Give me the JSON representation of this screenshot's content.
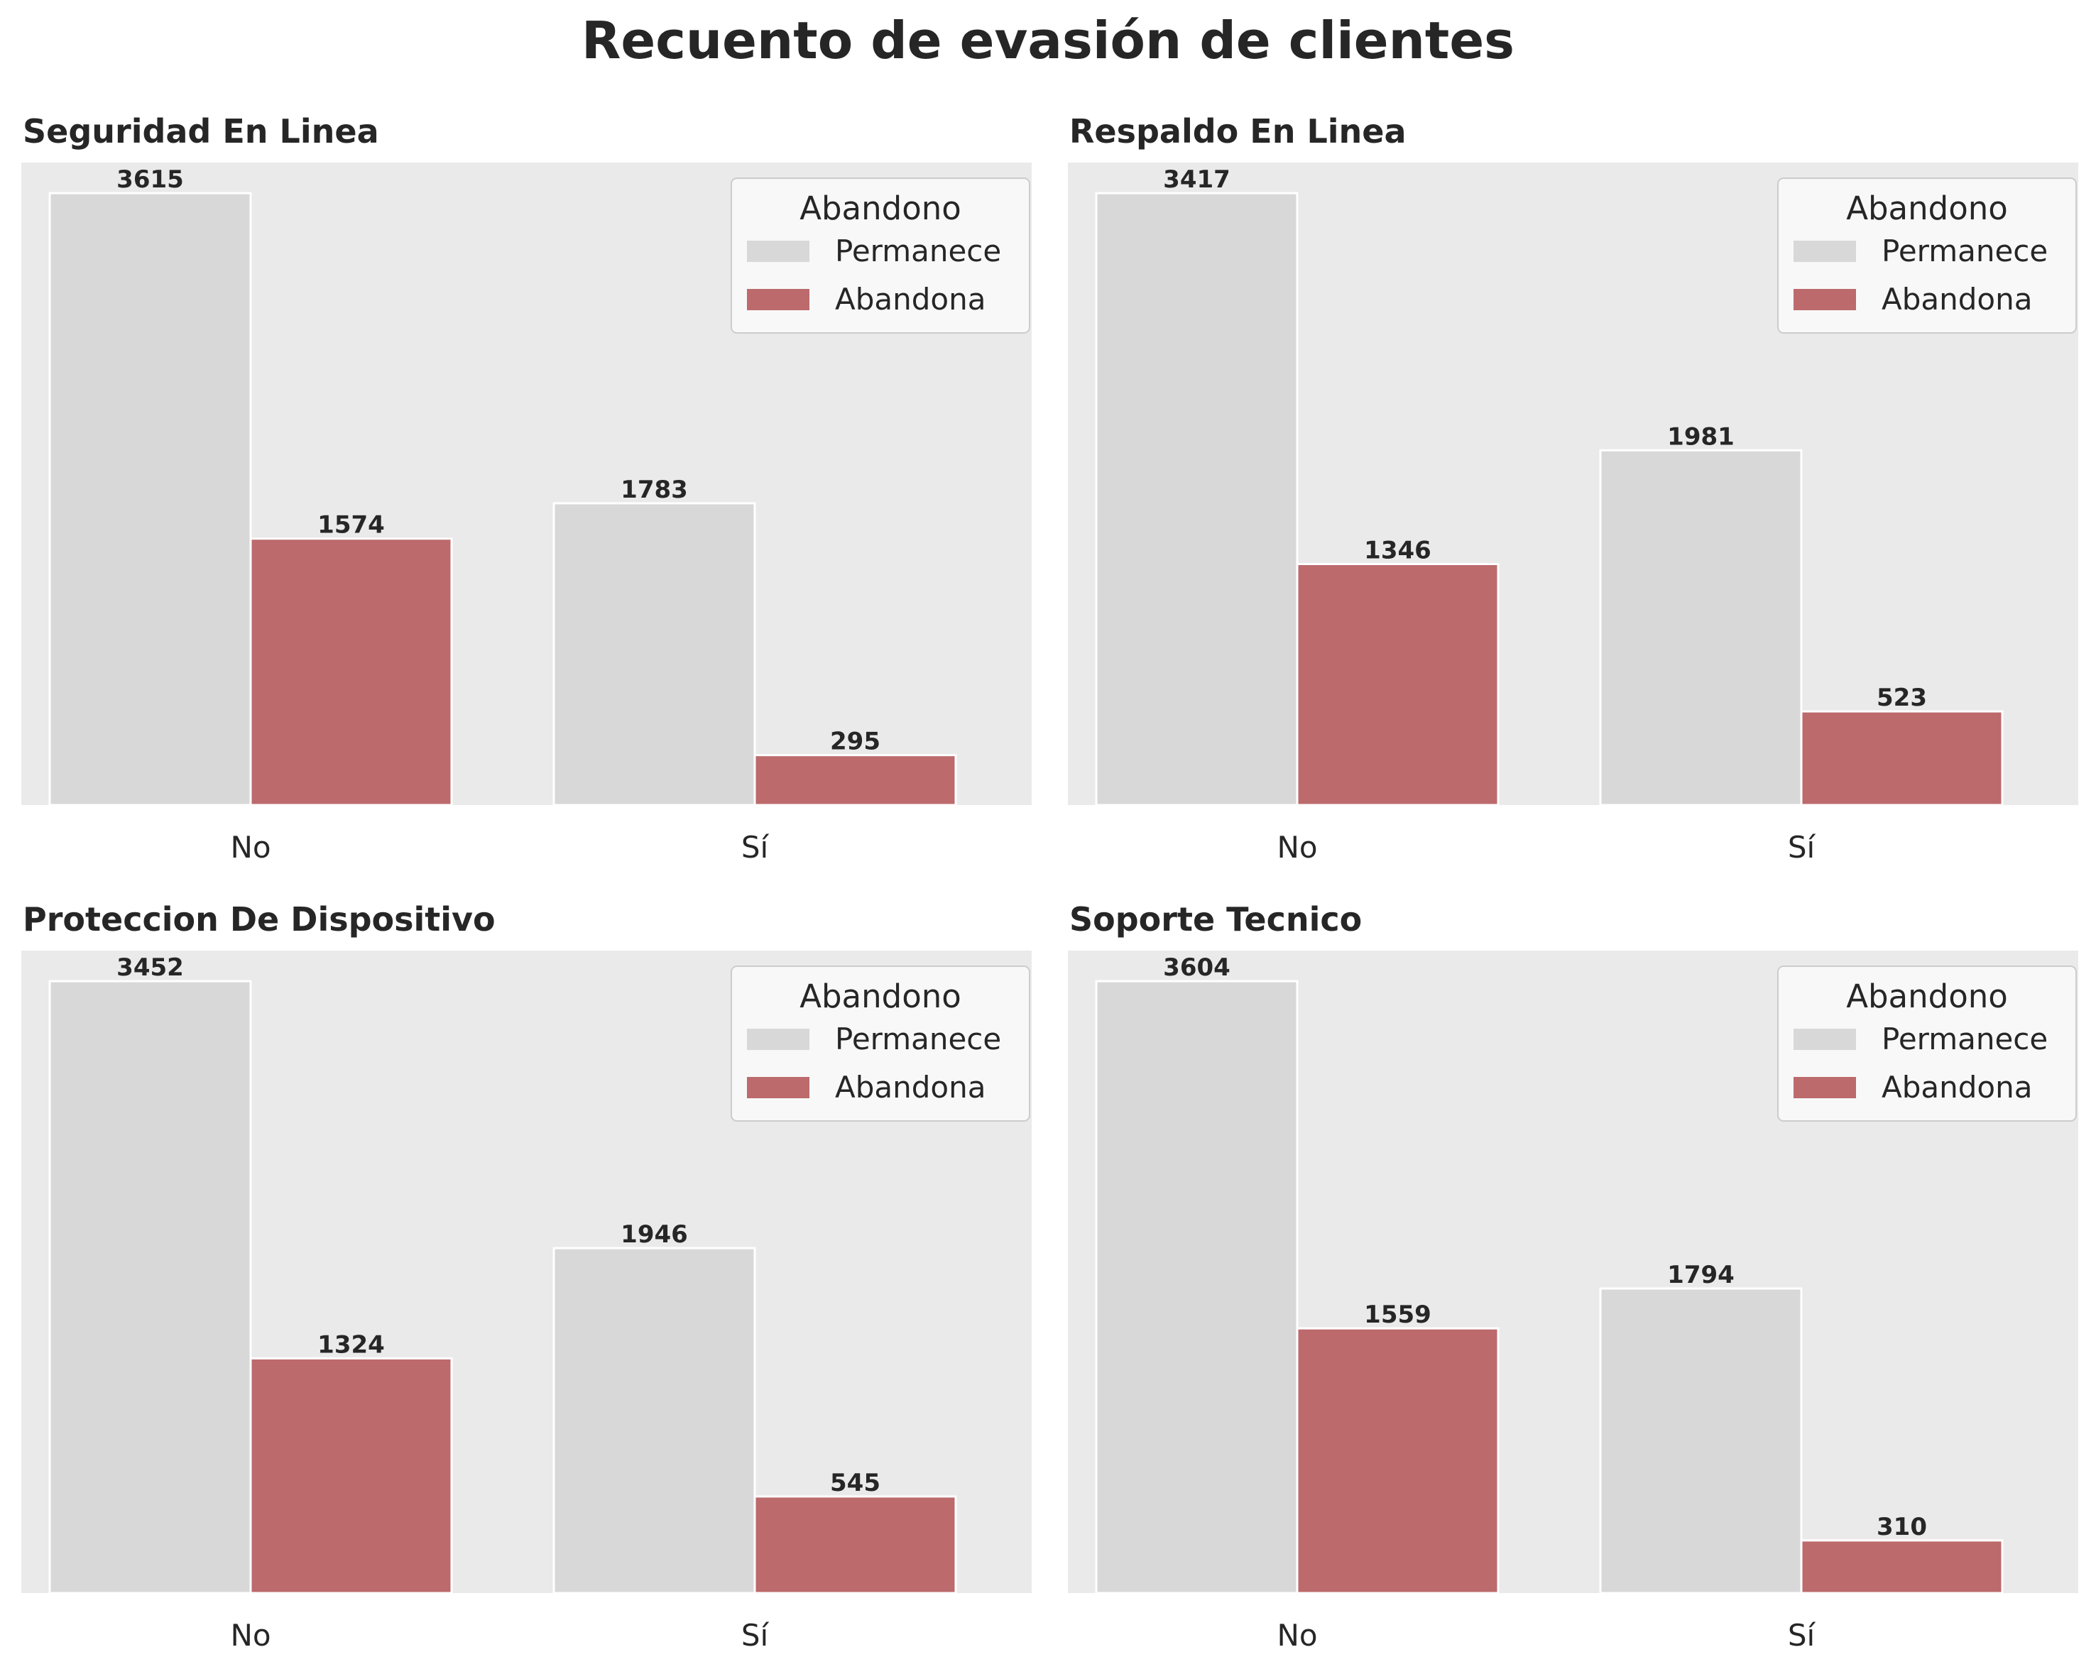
{
  "suptitle": "Recuento de evasión de clientes",
  "colors": {
    "panel_background": "#EAEAEA",
    "Permanece": "#D8D8D8",
    "Abandona": "#BC6A6C",
    "legend_background": "#F8F8F8"
  },
  "chart_data": [
    {
      "type": "bar",
      "title": "Seguridad En Linea",
      "categories": [
        "No",
        "Sí"
      ],
      "series": [
        {
          "name": "Permanece",
          "values": [
            3615,
            1783
          ]
        },
        {
          "name": "Abandona",
          "values": [
            1574,
            295
          ]
        }
      ],
      "legend": {
        "title": "Abandono",
        "placement": "top-right"
      },
      "xlabel": "",
      "ylabel": "",
      "ylim": [
        0,
        3795.75
      ],
      "grid": false
    },
    {
      "type": "bar",
      "title": "Respaldo En Linea",
      "categories": [
        "No",
        "Sí"
      ],
      "series": [
        {
          "name": "Permanece",
          "values": [
            3417,
            1981
          ]
        },
        {
          "name": "Abandona",
          "values": [
            1346,
            523
          ]
        }
      ],
      "legend": {
        "title": "Abandono",
        "placement": "top-right"
      },
      "xlabel": "",
      "ylabel": "",
      "ylim": [
        0,
        3587.85
      ],
      "grid": false
    },
    {
      "type": "bar",
      "title": "Proteccion De Dispositivo",
      "categories": [
        "No",
        "Sí"
      ],
      "series": [
        {
          "name": "Permanece",
          "values": [
            3452,
            1946
          ]
        },
        {
          "name": "Abandona",
          "values": [
            1324,
            545
          ]
        }
      ],
      "legend": {
        "title": "Abandono",
        "placement": "top-right"
      },
      "xlabel": "",
      "ylabel": "",
      "ylim": [
        0,
        3624.6
      ],
      "grid": false
    },
    {
      "type": "bar",
      "title": "Soporte Tecnico",
      "categories": [
        "No",
        "Sí"
      ],
      "series": [
        {
          "name": "Permanece",
          "values": [
            3604,
            1794
          ]
        },
        {
          "name": "Abandona",
          "values": [
            1559,
            310
          ]
        }
      ],
      "legend": {
        "title": "Abandono",
        "placement": "top-right"
      },
      "xlabel": "",
      "ylabel": "",
      "ylim": [
        0,
        3784.2
      ],
      "grid": false
    }
  ]
}
